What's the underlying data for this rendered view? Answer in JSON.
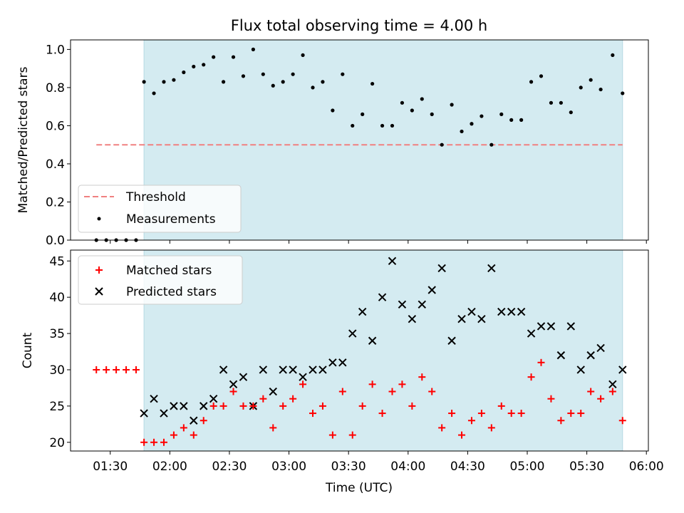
{
  "colors": {
    "shade": "#d4ebf1",
    "shade_edge": "#b5d9e3",
    "threshold": "#f08080",
    "measurement": "#000000",
    "matched": "#ff0000",
    "predicted": "#000000"
  },
  "chart_data": [
    {
      "type": "scatter",
      "title": "Flux total observing time = 4.00 h",
      "xlabel": "",
      "ylabel": "Matched/Predicted stars",
      "xlim": [
        "01:10",
        "06:01"
      ],
      "ylim": [
        0,
        1.05
      ],
      "yticks": [
        "0.0",
        "0.2",
        "0.4",
        "0.6",
        "0.8",
        "1.0"
      ],
      "shaded_x_range": [
        "01:47",
        "05:48"
      ],
      "legend": {
        "placement": "lower-left",
        "entries": [
          "Threshold",
          "Measurements"
        ]
      },
      "threshold": {
        "name": "Threshold",
        "y": 0.5,
        "x": [
          "01:23",
          "05:48"
        ]
      },
      "series": [
        {
          "name": "Measurements",
          "marker": "dot",
          "x": [
            "01:23",
            "01:28",
            "01:33",
            "01:38",
            "01:43",
            "01:47",
            "01:52",
            "01:57",
            "02:02",
            "02:07",
            "02:12",
            "02:17",
            "02:22",
            "02:27",
            "02:32",
            "02:37",
            "02:42",
            "02:47",
            "02:52",
            "02:57",
            "03:02",
            "03:07",
            "03:12",
            "03:17",
            "03:22",
            "03:27",
            "03:32",
            "03:37",
            "03:42",
            "03:47",
            "03:52",
            "03:57",
            "04:02",
            "04:07",
            "04:12",
            "04:17",
            "04:22",
            "04:27",
            "04:32",
            "04:37",
            "04:42",
            "04:47",
            "04:52",
            "04:57",
            "05:02",
            "05:07",
            "05:12",
            "05:17",
            "05:22",
            "05:27",
            "05:32",
            "05:37",
            "05:43",
            "05:48"
          ],
          "y": [
            0,
            0,
            0,
            0,
            0,
            0.83,
            0.77,
            0.83,
            0.84,
            0.88,
            0.91,
            0.92,
            0.96,
            0.83,
            0.96,
            0.86,
            1.0,
            0.87,
            0.81,
            0.83,
            0.87,
            0.97,
            0.8,
            0.83,
            0.68,
            0.87,
            0.6,
            0.66,
            0.82,
            0.6,
            0.6,
            0.72,
            0.68,
            0.74,
            0.66,
            0.5,
            0.71,
            0.57,
            0.61,
            0.65,
            0.5,
            0.66,
            0.63,
            0.63,
            0.83,
            0.86,
            0.72,
            0.72,
            0.67,
            0.8,
            0.84,
            0.79,
            0.97,
            0.77
          ]
        }
      ]
    },
    {
      "type": "scatter",
      "title": "",
      "xlabel": "Time (UTC)",
      "ylabel": "Count",
      "xlim": [
        "01:10",
        "06:01"
      ],
      "ylim": [
        18.8,
        46.5
      ],
      "yticks": [
        "20",
        "25",
        "30",
        "35",
        "40",
        "45"
      ],
      "xticks": [
        "01:30",
        "02:00",
        "02:30",
        "03:00",
        "03:30",
        "04:00",
        "04:30",
        "05:00",
        "05:30",
        "06:00"
      ],
      "shaded_x_range": [
        "01:47",
        "05:48"
      ],
      "legend": {
        "placement": "top-left",
        "entries": [
          "Matched stars",
          "Predicted stars"
        ]
      },
      "series": [
        {
          "name": "Matched stars",
          "marker": "plus",
          "x": [
            "01:23",
            "01:28",
            "01:33",
            "01:38",
            "01:43",
            "01:47",
            "01:52",
            "01:57",
            "02:02",
            "02:07",
            "02:12",
            "02:17",
            "02:22",
            "02:27",
            "02:32",
            "02:37",
            "02:42",
            "02:47",
            "02:52",
            "02:57",
            "03:02",
            "03:07",
            "03:12",
            "03:17",
            "03:22",
            "03:27",
            "03:32",
            "03:37",
            "03:42",
            "03:47",
            "03:52",
            "03:57",
            "04:02",
            "04:07",
            "04:12",
            "04:17",
            "04:22",
            "04:27",
            "04:32",
            "04:37",
            "04:42",
            "04:47",
            "04:52",
            "04:57",
            "05:02",
            "05:07",
            "05:12",
            "05:17",
            "05:22",
            "05:27",
            "05:32",
            "05:37",
            "05:43",
            "05:48"
          ],
          "y": [
            30,
            30,
            30,
            30,
            30,
            20,
            20,
            20,
            21,
            22,
            21,
            23,
            25,
            25,
            27,
            25,
            25,
            26,
            22,
            25,
            26,
            28,
            24,
            25,
            21,
            27,
            21,
            25,
            28,
            24,
            27,
            28,
            25,
            29,
            27,
            22,
            24,
            21,
            23,
            24,
            22,
            25,
            24,
            24,
            29,
            31,
            26,
            23,
            24,
            24,
            27,
            26,
            27,
            23
          ]
        },
        {
          "name": "Predicted stars",
          "marker": "x",
          "x": [
            "01:47",
            "01:52",
            "01:57",
            "02:02",
            "02:07",
            "02:12",
            "02:17",
            "02:22",
            "02:27",
            "02:32",
            "02:37",
            "02:42",
            "02:47",
            "02:52",
            "02:57",
            "03:02",
            "03:07",
            "03:12",
            "03:17",
            "03:22",
            "03:27",
            "03:32",
            "03:37",
            "03:42",
            "03:47",
            "03:52",
            "03:57",
            "04:02",
            "04:07",
            "04:12",
            "04:17",
            "04:22",
            "04:27",
            "04:32",
            "04:37",
            "04:42",
            "04:47",
            "04:52",
            "04:57",
            "05:02",
            "05:07",
            "05:12",
            "05:17",
            "05:22",
            "05:27",
            "05:32",
            "05:37",
            "05:43",
            "05:48"
          ],
          "y": [
            24,
            26,
            24,
            25,
            25,
            23,
            25,
            26,
            30,
            28,
            29,
            25,
            30,
            27,
            30,
            30,
            29,
            30,
            30,
            31,
            31,
            35,
            38,
            34,
            40,
            45,
            39,
            37,
            39,
            41,
            44,
            34,
            37,
            38,
            37,
            44,
            38,
            38,
            38,
            35,
            36,
            36,
            32,
            36,
            30,
            32,
            33,
            28,
            30
          ]
        }
      ]
    }
  ]
}
